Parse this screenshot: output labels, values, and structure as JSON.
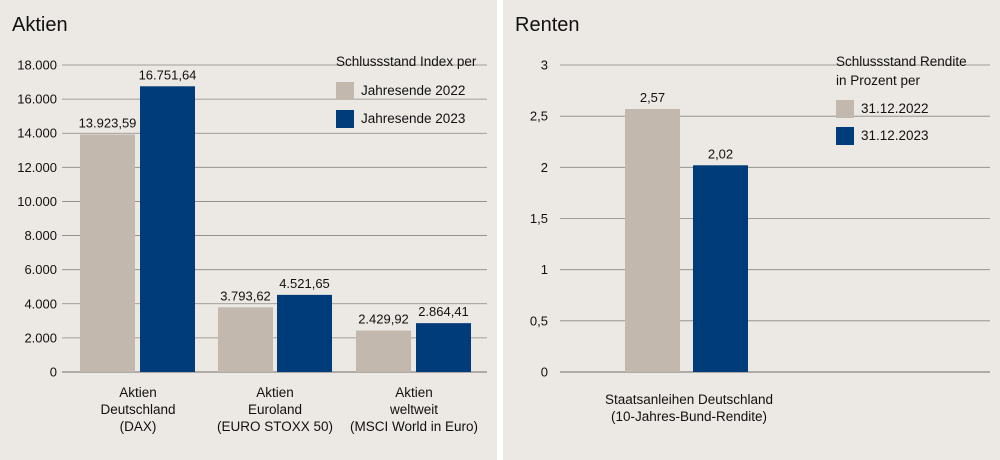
{
  "colors": {
    "c2022": "#c2b8ae",
    "c2023": "#003b7a",
    "grid": "#8a8580"
  },
  "chart_data": [
    {
      "type": "bar",
      "title": "Aktien",
      "legend_title": "Schlussstand Index per",
      "categories": [
        [
          "Aktien",
          "Deutschland",
          "(DAX)"
        ],
        [
          "Aktien",
          "Euroland",
          "(EURO STOXX 50)"
        ],
        [
          "Aktien",
          "weltweit",
          "(MSCI World in Euro)"
        ]
      ],
      "series": [
        {
          "name": "Jahresende 2022",
          "values": [
            13923.59,
            3793.62,
            2429.92
          ],
          "labels": [
            "13.923,59",
            "3.793,62",
            "2.429,92"
          ]
        },
        {
          "name": "Jahresende 2023",
          "values": [
            16751.64,
            4521.65,
            2864.41
          ],
          "labels": [
            "16.751,64",
            "4.521,65",
            "2.864,41"
          ]
        }
      ],
      "ylim": [
        0,
        18000
      ],
      "yticks": [
        0,
        2000,
        4000,
        6000,
        8000,
        10000,
        12000,
        14000,
        16000,
        18000
      ],
      "ytick_labels": [
        "0",
        "2.000",
        "4.000",
        "6.000",
        "8.000",
        "10.000",
        "12.000",
        "14.000",
        "16.000",
        "18.000"
      ],
      "grid": true,
      "legend_position": "top-right"
    },
    {
      "type": "bar",
      "title": "Renten",
      "legend_title": [
        "Schlussstand Rendite",
        "in Prozent per"
      ],
      "categories": [
        [
          "Staatsanleihen Deutschland",
          "(10-Jahres-Bund-Rendite)"
        ]
      ],
      "series": [
        {
          "name": "31.12.2022",
          "values": [
            2.57
          ],
          "labels": [
            "2,57"
          ]
        },
        {
          "name": "31.12.2023",
          "values": [
            2.02
          ],
          "labels": [
            "2,02"
          ]
        }
      ],
      "ylim": [
        0,
        3
      ],
      "yticks": [
        0,
        0.5,
        1,
        1.5,
        2,
        2.5,
        3
      ],
      "ytick_labels": [
        "0",
        "0,5",
        "1",
        "1,5",
        "2",
        "2,5",
        "3"
      ],
      "grid": true,
      "legend_position": "top-right"
    }
  ]
}
